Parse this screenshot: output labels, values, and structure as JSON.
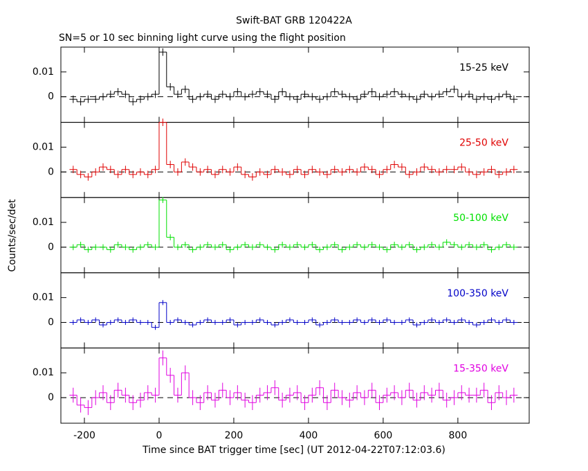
{
  "title": "Swift-BAT GRB 120422A",
  "subtitle": "SN=5 or 10 sec binning light curve using the flight position",
  "x_label": "Time since BAT trigger time [sec] (UT 2012-04-22T07:12:03.6)",
  "y_label": "Counts/sec/det",
  "chart_data": [
    {
      "type": "line",
      "name": "15-25 keV",
      "color": "#000000",
      "xlim": [
        -263,
        991
      ],
      "ylim": [
        -0.0103,
        0.02
      ],
      "xticks": [
        -200,
        0,
        200,
        400,
        600,
        800
      ],
      "yticks": [
        0,
        0.01
      ],
      "bin_width": 20,
      "error": 0.0015,
      "x": [
        -230,
        -210,
        -190,
        -170,
        -150,
        -130,
        -110,
        -90,
        -70,
        -50,
        -30,
        -10,
        10,
        30,
        50,
        70,
        90,
        110,
        130,
        150,
        170,
        190,
        210,
        230,
        250,
        270,
        290,
        310,
        330,
        350,
        370,
        390,
        410,
        430,
        450,
        470,
        490,
        510,
        530,
        550,
        570,
        590,
        610,
        630,
        650,
        670,
        690,
        710,
        730,
        750,
        770,
        790,
        810,
        830,
        850,
        870,
        890,
        910,
        930,
        950
      ],
      "values": [
        -0.001,
        -0.002,
        -0.001,
        -0.001,
        0,
        0.001,
        0.002,
        0.001,
        -0.002,
        -0.001,
        0,
        0.001,
        0.018,
        0.004,
        0.001,
        0.003,
        -0.001,
        0,
        0.001,
        -0.001,
        0.001,
        0,
        0.002,
        0,
        0.001,
        0.002,
        0.001,
        -0.001,
        0.002,
        0,
        -0.001,
        0.001,
        0,
        -0.001,
        0,
        0.002,
        0.001,
        0,
        -0.001,
        0.001,
        0.002,
        0,
        0.001,
        0.002,
        0.001,
        0,
        -0.001,
        0.001,
        0,
        0.001,
        0.002,
        0.003,
        0,
        0.001,
        -0.001,
        0,
        -0.001,
        0,
        0.001,
        -0.001
      ]
    },
    {
      "type": "line",
      "name": "25-50 keV",
      "color": "#e00000",
      "xlim": [
        -263,
        991
      ],
      "ylim": [
        -0.0103,
        0.02
      ],
      "xticks": [
        -200,
        0,
        200,
        400,
        600,
        800
      ],
      "yticks": [
        0,
        0.01
      ],
      "bin_width": 20,
      "error": 0.0015,
      "x": [
        -230,
        -210,
        -190,
        -170,
        -150,
        -130,
        -110,
        -90,
        -70,
        -50,
        -30,
        -10,
        10,
        30,
        50,
        70,
        90,
        110,
        130,
        150,
        170,
        190,
        210,
        230,
        250,
        270,
        290,
        310,
        330,
        350,
        370,
        390,
        410,
        430,
        450,
        470,
        490,
        510,
        530,
        550,
        570,
        590,
        610,
        630,
        650,
        670,
        690,
        710,
        730,
        750,
        770,
        790,
        810,
        830,
        850,
        870,
        890,
        910,
        930,
        950
      ],
      "values": [
        0.001,
        -0.001,
        -0.002,
        0,
        0.002,
        0.001,
        -0.001,
        0.001,
        -0.001,
        0,
        -0.001,
        0.001,
        0.02,
        0.003,
        0,
        0.004,
        0.002,
        0,
        0.001,
        -0.001,
        0.001,
        0,
        0.002,
        -0.001,
        -0.002,
        0,
        -0.001,
        0.001,
        0,
        -0.001,
        0.001,
        -0.001,
        0.001,
        0,
        -0.001,
        0.001,
        0,
        0.001,
        0,
        0.002,
        0.001,
        -0.001,
        0.001,
        0.003,
        0.002,
        -0.001,
        0,
        0.002,
        0.001,
        0,
        0.001,
        0.001,
        0.002,
        0,
        -0.001,
        0,
        0.001,
        -0.001,
        0,
        0.001
      ]
    },
    {
      "type": "line",
      "name": "50-100 keV",
      "color": "#00e000",
      "xlim": [
        -263,
        991
      ],
      "ylim": [
        -0.0103,
        0.02
      ],
      "xticks": [
        -200,
        0,
        200,
        400,
        600,
        800
      ],
      "yticks": [
        0,
        0.01
      ],
      "bin_width": 20,
      "error": 0.0012,
      "x": [
        -230,
        -210,
        -190,
        -170,
        -150,
        -130,
        -110,
        -90,
        -70,
        -50,
        -30,
        -10,
        10,
        30,
        50,
        70,
        90,
        110,
        130,
        150,
        170,
        190,
        210,
        230,
        250,
        270,
        290,
        310,
        330,
        350,
        370,
        390,
        410,
        430,
        450,
        470,
        490,
        510,
        530,
        550,
        570,
        590,
        610,
        630,
        650,
        670,
        690,
        710,
        730,
        750,
        770,
        790,
        810,
        830,
        850,
        870,
        890,
        910,
        930,
        950
      ],
      "values": [
        0,
        0.001,
        -0.001,
        0,
        0,
        -0.001,
        0.001,
        0,
        -0.001,
        0,
        0.001,
        0,
        0.019,
        0.004,
        0,
        0.001,
        -0.001,
        0,
        0.001,
        0,
        0.001,
        -0.001,
        0,
        0.001,
        0,
        0.001,
        0,
        -0.001,
        0.001,
        0,
        0.001,
        0,
        0.001,
        -0.001,
        0,
        0.001,
        -0.001,
        0,
        0.001,
        0,
        0.001,
        0,
        -0.001,
        0.001,
        0,
        0.001,
        -0.001,
        0,
        0.001,
        0,
        0.002,
        0.001,
        0,
        0.001,
        0,
        0.001,
        -0.001,
        0,
        0.001,
        0
      ]
    },
    {
      "type": "line",
      "name": "100-350 keV",
      "color": "#0000c8",
      "xlim": [
        -263,
        991
      ],
      "ylim": [
        -0.0103,
        0.02
      ],
      "xticks": [
        -200,
        0,
        200,
        400,
        600,
        800
      ],
      "yticks": [
        0,
        0.01
      ],
      "bin_width": 20,
      "error": 0.001,
      "x": [
        -230,
        -210,
        -190,
        -170,
        -150,
        -130,
        -110,
        -90,
        -70,
        -50,
        -30,
        -10,
        10,
        30,
        50,
        70,
        90,
        110,
        130,
        150,
        170,
        190,
        210,
        230,
        250,
        270,
        290,
        310,
        330,
        350,
        370,
        390,
        410,
        430,
        450,
        470,
        490,
        510,
        530,
        550,
        570,
        590,
        610,
        630,
        650,
        670,
        690,
        710,
        730,
        750,
        770,
        790,
        810,
        830,
        850,
        870,
        890,
        910,
        930,
        950
      ],
      "values": [
        0,
        0.001,
        0,
        0.001,
        -0.001,
        0,
        0.001,
        0,
        0.001,
        0,
        0,
        -0.002,
        0.008,
        0,
        0.001,
        0,
        -0.001,
        0,
        0.001,
        0,
        0,
        0.001,
        -0.001,
        0,
        0,
        0.001,
        0,
        -0.001,
        0,
        0.001,
        0,
        0,
        0.001,
        -0.001,
        0,
        0.001,
        0,
        0,
        0.001,
        0,
        0.001,
        0,
        0.001,
        0,
        0,
        0.001,
        -0.001,
        0,
        0.001,
        0,
        0.001,
        0,
        0.001,
        0,
        -0.001,
        0,
        0.001,
        0,
        0.001,
        0
      ]
    },
    {
      "type": "line",
      "name": "15-350 keV",
      "color": "#e000e0",
      "xlim": [
        -263,
        991
      ],
      "ylim": [
        -0.0103,
        0.02
      ],
      "xticks": [
        -200,
        0,
        200,
        400,
        600,
        800
      ],
      "yticks": [
        0,
        0.01
      ],
      "bin_width": 20,
      "error": 0.003,
      "show_xtick_labels": true,
      "x": [
        -230,
        -210,
        -190,
        -170,
        -150,
        -130,
        -110,
        -90,
        -70,
        -50,
        -30,
        -10,
        10,
        30,
        50,
        70,
        90,
        110,
        130,
        150,
        170,
        190,
        210,
        230,
        250,
        270,
        290,
        310,
        330,
        350,
        370,
        390,
        410,
        430,
        450,
        470,
        490,
        510,
        530,
        550,
        570,
        590,
        610,
        630,
        650,
        670,
        690,
        710,
        730,
        750,
        770,
        790,
        810,
        830,
        850,
        870,
        890,
        910,
        930,
        950
      ],
      "values": [
        0.001,
        -0.003,
        -0.004,
        0,
        0.002,
        -0.002,
        0.003,
        0.001,
        -0.002,
        -0.001,
        0.002,
        0.001,
        0.016,
        0.009,
        0.001,
        0.01,
        0,
        -0.002,
        0.002,
        -0.001,
        0.003,
        0,
        0.002,
        -0.001,
        -0.002,
        0.001,
        0.002,
        0.004,
        -0.001,
        0.001,
        0.002,
        -0.002,
        0.001,
        0.004,
        -0.002,
        0.003,
        0,
        -0.001,
        0.002,
        0,
        0.003,
        -0.002,
        0.001,
        0.002,
        0,
        0.003,
        -0.001,
        0.002,
        0.001,
        0.003,
        -0.001,
        0,
        0.002,
        0.001,
        0.001,
        0.003,
        -0.002,
        0.002,
        0,
        0.001
      ]
    }
  ]
}
